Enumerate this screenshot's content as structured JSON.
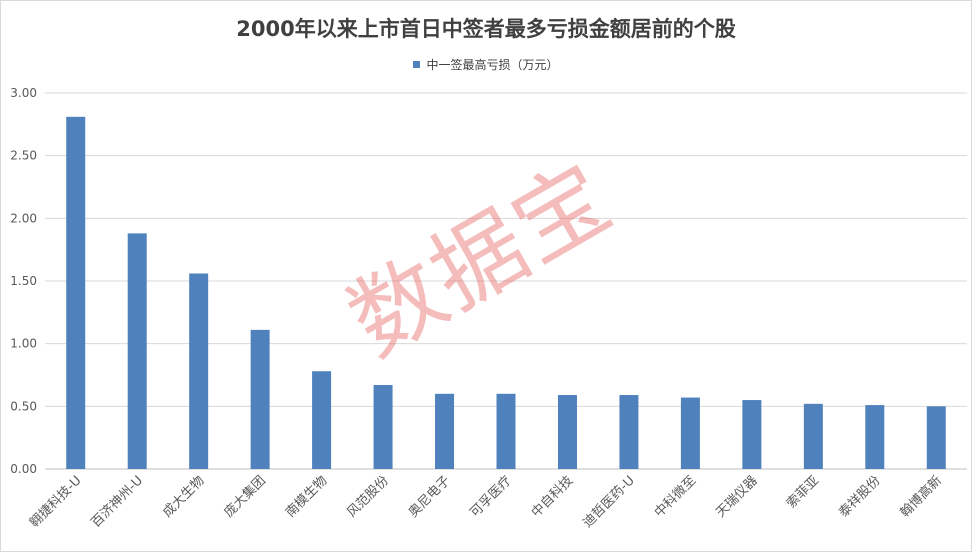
{
  "chart_data": {
    "type": "bar",
    "title": "2000年以来上市首日中签者最多亏损金额居前的个股",
    "categories": [
      "翱捷科技-U",
      "百济神州-U",
      "成大生物",
      "庞大集团",
      "南模生物",
      "风范股份",
      "奥尼电子",
      "可孚医疗",
      "中自科技",
      "迪哲医药-U",
      "中科微至",
      "天瑞仪器",
      "索菲亚",
      "泰祥股份",
      "翰博高新"
    ],
    "series": [
      {
        "name": "中一签最高亏损（万元）",
        "values": [
          2.81,
          1.88,
          1.56,
          1.11,
          0.78,
          0.67,
          0.6,
          0.6,
          0.59,
          0.59,
          0.57,
          0.55,
          0.52,
          0.51,
          0.5
        ]
      }
    ],
    "xlabel": "",
    "ylabel": "",
    "ylim": [
      0,
      3
    ],
    "yticks": [
      "0.00",
      "0.50",
      "1.00",
      "1.50",
      "2.00",
      "2.50",
      "3.00"
    ],
    "grid": true,
    "legend_position": "top",
    "bar_color": "#4f81bd"
  },
  "watermark": "数据宝"
}
